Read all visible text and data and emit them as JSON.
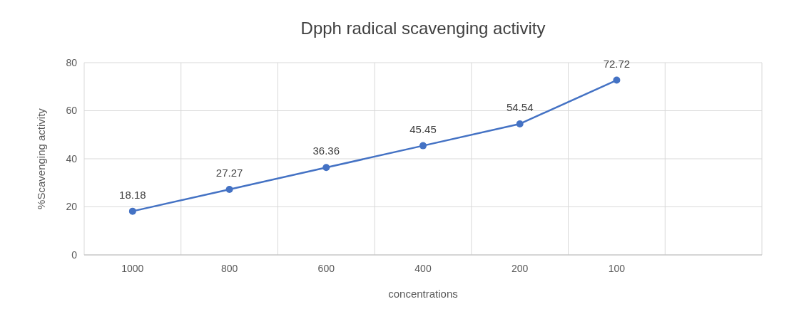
{
  "chart_data": {
    "type": "line",
    "title": "Dpph radical scavenging activity",
    "xlabel": "concentrations",
    "ylabel": "%Scavenging activity",
    "categories": [
      "1000",
      "800",
      "600",
      "400",
      "200",
      "100",
      null
    ],
    "series": [
      {
        "color": "#4472c4",
        "values": [
          18.18,
          27.27,
          36.36,
          45.45,
          54.54,
          72.72,
          null
        ]
      }
    ],
    "ylim": [
      0,
      80
    ],
    "yticks": [
      0,
      20,
      40,
      60,
      80
    ],
    "grid": true,
    "marker": "circle",
    "data_labels": true
  }
}
